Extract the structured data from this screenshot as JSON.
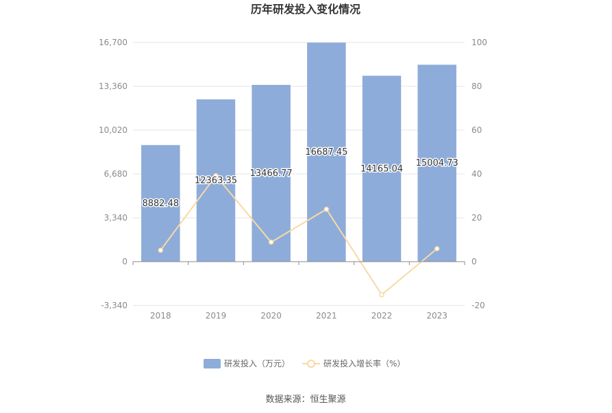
{
  "chart_data": {
    "type": "bar",
    "title": "历年研发投入变化情况",
    "categories": [
      "2018",
      "2019",
      "2020",
      "2021",
      "2022",
      "2023"
    ],
    "series": [
      {
        "name": "研发投入（万元）",
        "type": "bar",
        "axis": "left",
        "color": "#8eacd9",
        "values": [
          8882.48,
          12363.35,
          13466.77,
          16687.45,
          14165.04,
          15004.73
        ],
        "labels": [
          "8882.48",
          "12363.35",
          "13466.77",
          "16687.45",
          "14165.04",
          "15004.73"
        ]
      },
      {
        "name": "研发投入增长率（%）",
        "type": "line",
        "axis": "right",
        "color": "#f8d9a6",
        "values": [
          5.2,
          39.2,
          8.9,
          23.9,
          -15.1,
          5.9
        ]
      }
    ],
    "y_left": {
      "min": -3340,
      "max": 16700,
      "ticks": [
        -3340,
        0,
        3340,
        6680,
        10020,
        13360,
        16700
      ],
      "tick_labels": [
        "-3,340",
        "0",
        "3,340",
        "6,680",
        "10,020",
        "13,360",
        "16,700"
      ]
    },
    "y_right": {
      "min": -20,
      "max": 100,
      "ticks": [
        -20,
        0,
        20,
        40,
        60,
        80,
        100
      ],
      "tick_labels": [
        "-20",
        "0",
        "20",
        "40",
        "60",
        "80",
        "100"
      ]
    },
    "grid": true,
    "legend_position": "bottom-center",
    "source": "数据来源：恒生聚源"
  }
}
